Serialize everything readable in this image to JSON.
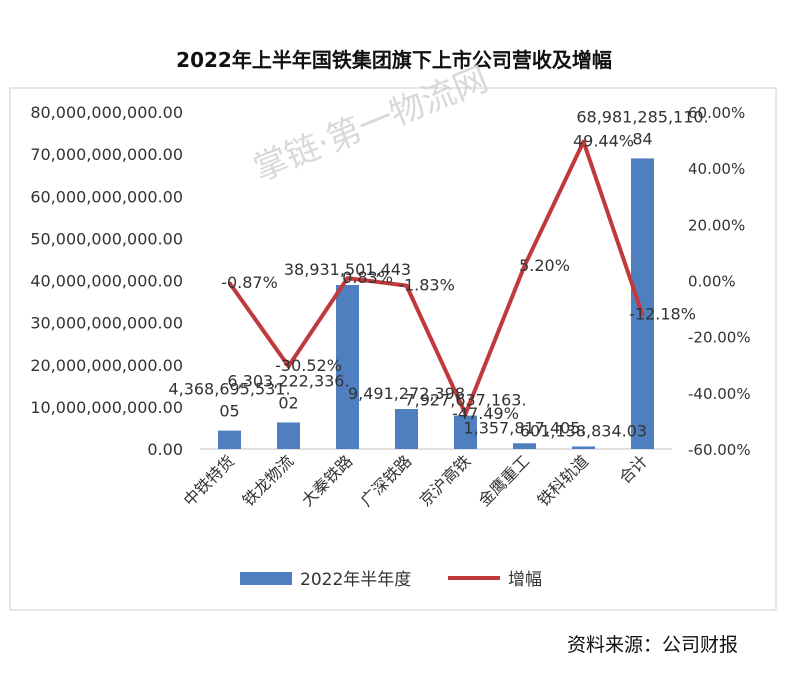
{
  "page": {
    "title": "2022年上半年国铁集团旗下上市公司营收及增幅",
    "source": "资料来源：公司财报",
    "watermark": "掌链·第一物流网"
  },
  "chart_data": {
    "type": "bar",
    "title": "2022年上半年国铁集团旗下上市公司营收及增幅",
    "categories": [
      "中铁特货",
      "铁龙物流",
      "大秦铁路",
      "广深铁路",
      "京沪高铁",
      "金鹰重工",
      "铁科轨道",
      "合计"
    ],
    "series": [
      {
        "name": "2022年半年度",
        "type": "bar",
        "axis": "left",
        "color": "#4f7fbf",
        "values": [
          4368695531.05,
          6303222336.02,
          38931501443,
          9491272398,
          7927637163,
          1357817405,
          601138834.03,
          68981285110.84
        ],
        "labels": [
          "4,368,695,531.05",
          "6,303,222,336.02",
          "38,931,501,443",
          "9,491,272,398",
          "7,927,637,163.",
          "1,357,817,405.",
          "601,138,834.03",
          "68,981,285,110.84"
        ]
      },
      {
        "name": "增幅",
        "type": "line",
        "axis": "right",
        "color": "#c0393b",
        "values": [
          -0.87,
          -30.52,
          0.83,
          -1.83,
          -47.49,
          5.2,
          49.44,
          -12.18
        ],
        "labels": [
          "-0.87%",
          "-30.52%",
          "0.83%",
          "-1.83%",
          "-47.49%",
          "5.20%",
          "49.44%",
          "-12.18%"
        ]
      }
    ],
    "y_left": {
      "min": 0,
      "max": 80000000000,
      "step": 10000000000,
      "ticks": [
        "0.00",
        "10,000,000,000.00",
        "20,000,000,000.00",
        "30,000,000,000.00",
        "40,000,000,000.00",
        "50,000,000,000.00",
        "60,000,000,000.00",
        "70,000,000,000.00",
        "80,000,000,000.00"
      ]
    },
    "y_right": {
      "min": -60,
      "max": 60,
      "step": 20,
      "ticks": [
        "-60.00%",
        "-40.00%",
        "-20.00%",
        "0.00%",
        "20.00%",
        "40.00%",
        "60.00%"
      ]
    },
    "legend_position": "bottom",
    "grid": false
  }
}
